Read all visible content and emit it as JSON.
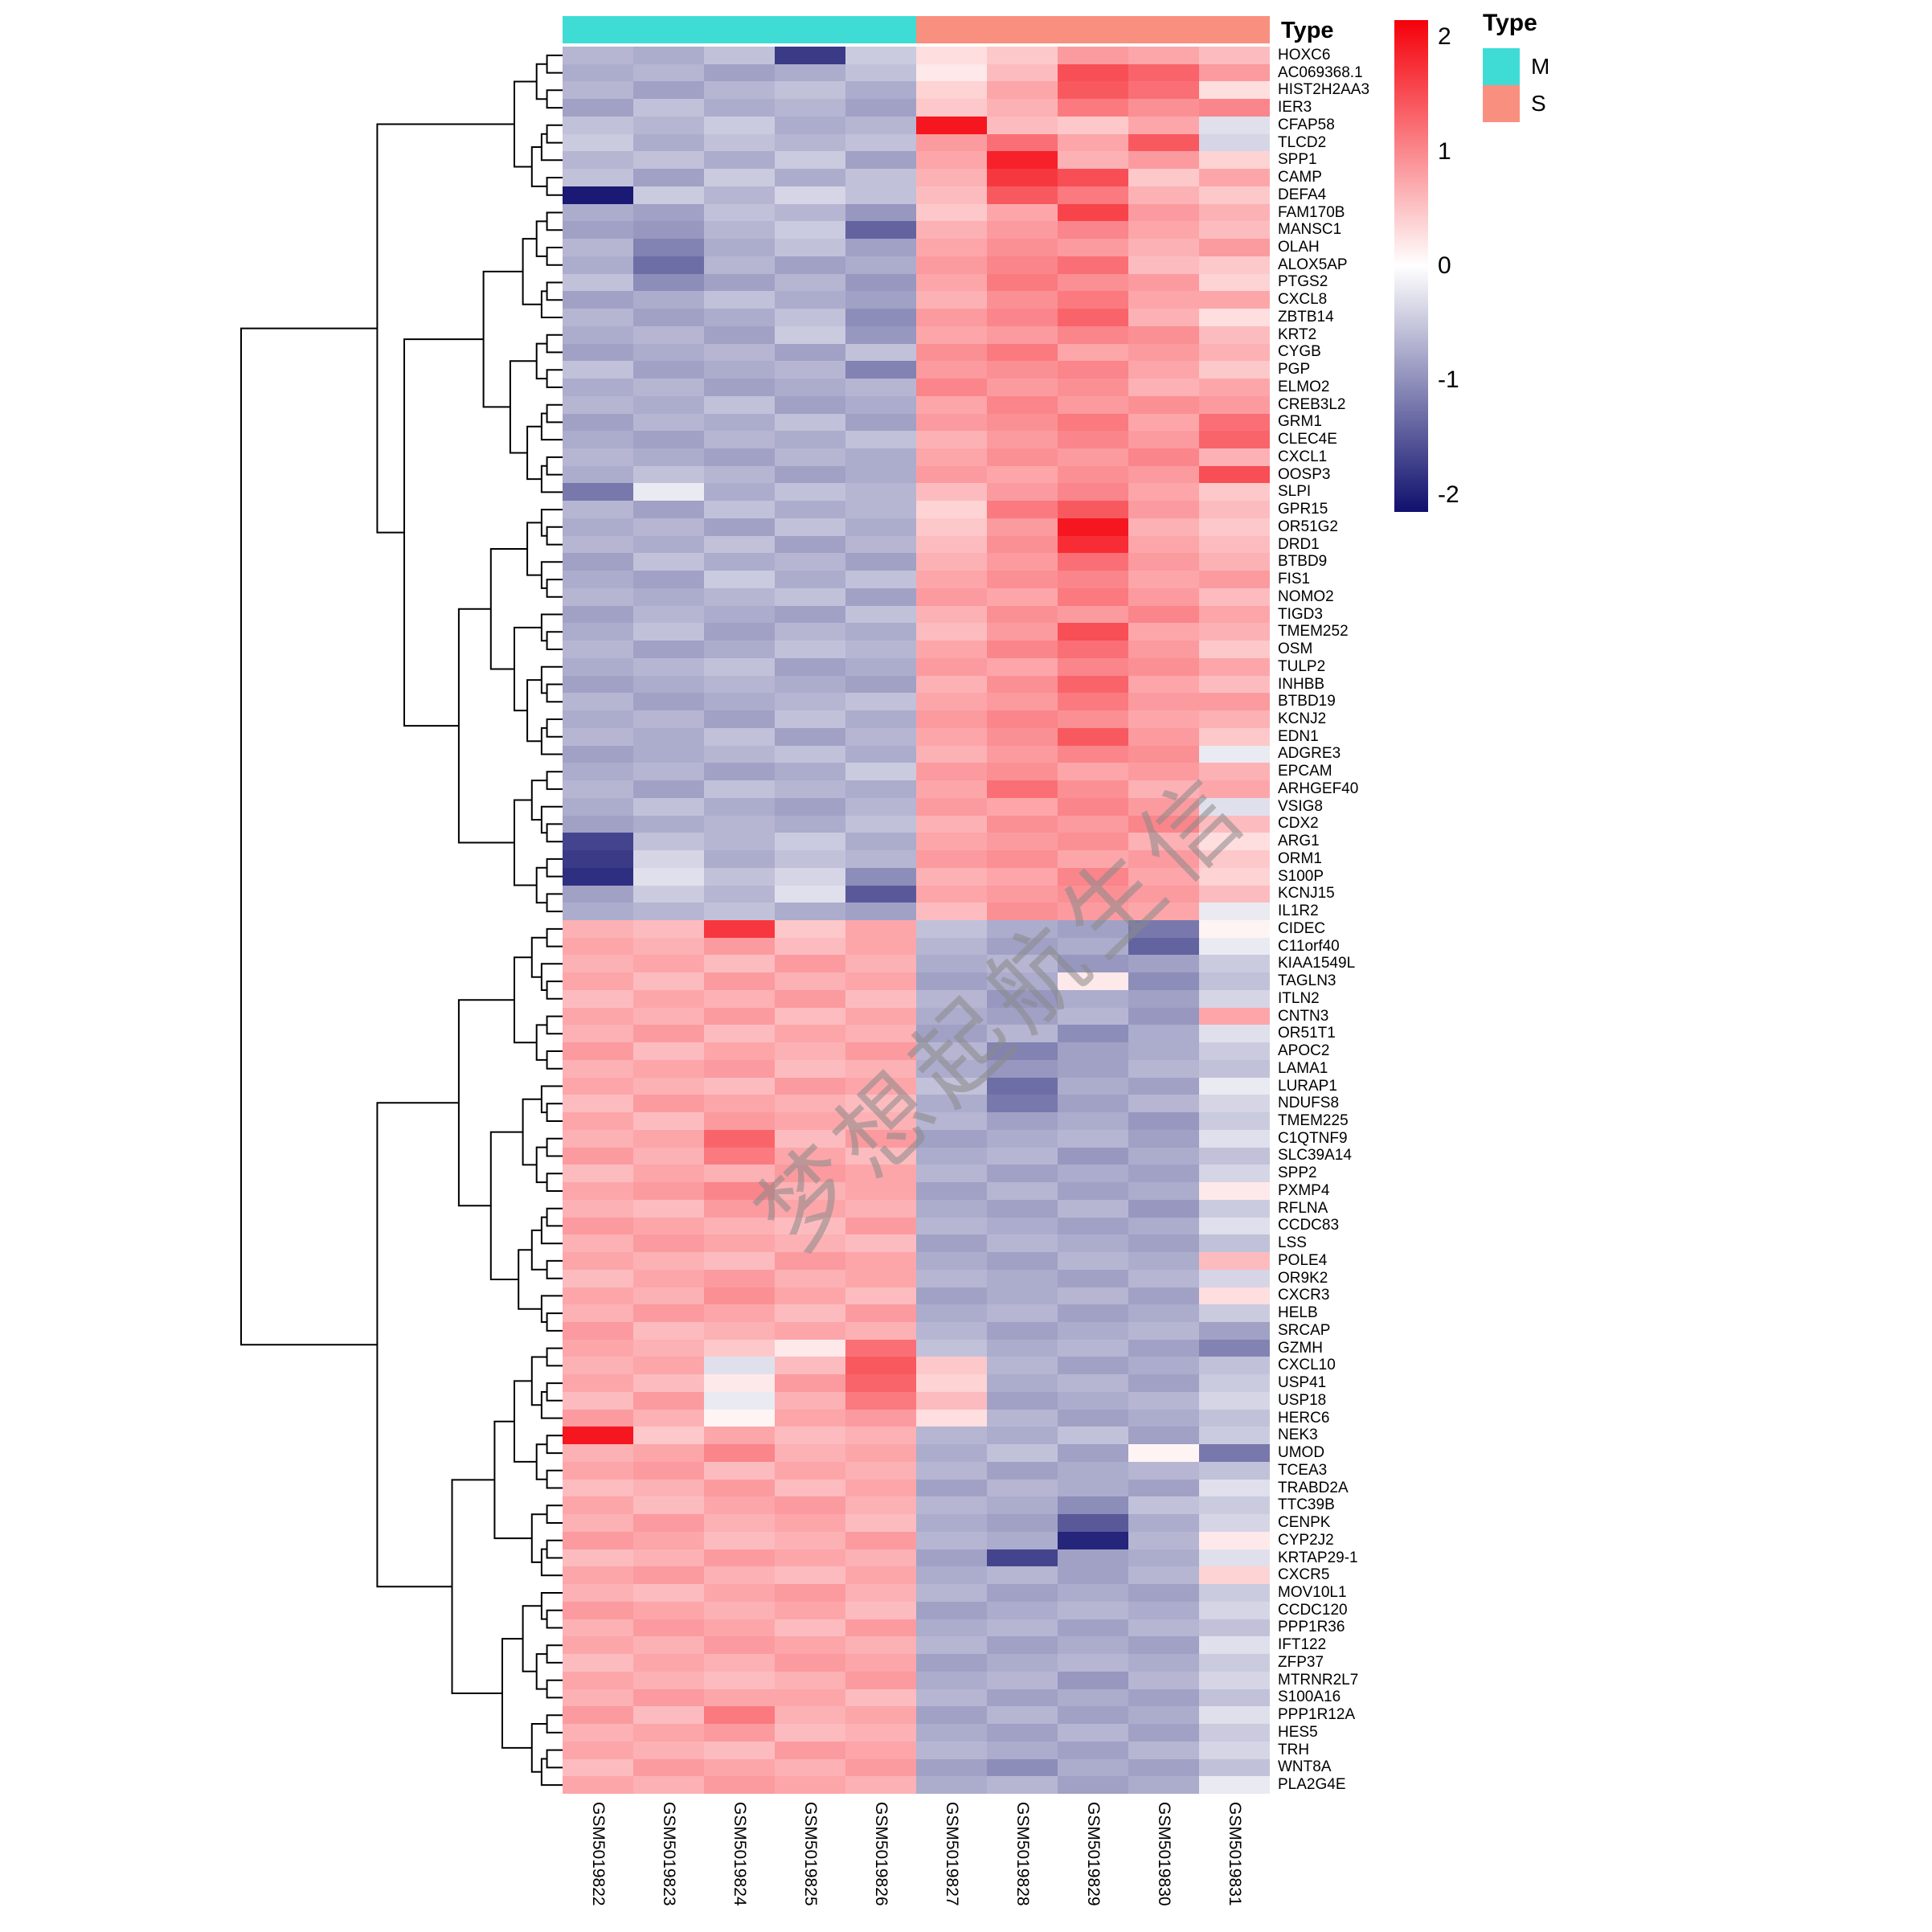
{
  "watermark": "梦想起航生信",
  "annotation": {
    "title": "Type",
    "groups": [
      {
        "label": "M",
        "color": "#3FDCD6",
        "span": 5
      },
      {
        "label": "S",
        "color": "#F9907F",
        "span": 5
      }
    ]
  },
  "legend": {
    "title": "Type"
  },
  "chart_data": {
    "type": "heatmap",
    "title": "",
    "xlabel": "",
    "ylabel": "",
    "legend_position": "right",
    "legend_ticks": [
      "2",
      "1",
      "0",
      "-1",
      "-2"
    ],
    "color_scale": {
      "min": -2,
      "max": 2,
      "low": "#10106E",
      "mid": "#FFFFFF",
      "high": "#F5000A"
    },
    "columns": [
      "GSM5019822",
      "GSM5019823",
      "GSM5019824",
      "GSM5019825",
      "GSM5019826",
      "GSM5019827",
      "GSM5019828",
      "GSM5019829",
      "GSM5019830",
      "GSM5019831"
    ],
    "column_annotation": [
      "M",
      "M",
      "M",
      "M",
      "M",
      "S",
      "S",
      "S",
      "S",
      "S"
    ],
    "rows": [
      "HOXC6",
      "AC069368.1",
      "HIST2H2AA3",
      "IER3",
      "CFAP58",
      "TLCD2",
      "SPP1",
      "CAMP",
      "DEFA4",
      "FAM170B",
      "MANSC1",
      "OLAH",
      "ALOX5AP",
      "PTGS2",
      "CXCL8",
      "ZBTB14",
      "KRT2",
      "CYGB",
      "PGP",
      "ELMO2",
      "CREB3L2",
      "GRM1",
      "CLEC4E",
      "CXCL1",
      "OOSP3",
      "SLPI",
      "GPR15",
      "OR51G2",
      "DRD1",
      "BTBD9",
      "FIS1",
      "NOMO2",
      "TIGD3",
      "TMEM252",
      "OSM",
      "TULP2",
      "INHBB",
      "BTBD19",
      "KCNJ2",
      "EDN1",
      "ADGRE3",
      "EPCAM",
      "ARHGEF40",
      "VSIG8",
      "CDX2",
      "ARG1",
      "ORM1",
      "S100P",
      "KCNJ15",
      "IL1R2",
      "CIDEC",
      "C11orf40",
      "KIAA1549L",
      "TAGLN3",
      "ITLN2",
      "CNTN3",
      "OR51T1",
      "APOC2",
      "LAMA1",
      "LURAP1",
      "NDUFS8",
      "TMEM225",
      "C1QTNF9",
      "SLC39A14",
      "SPP2",
      "PXMP4",
      "RFLNA",
      "CCDC83",
      "LSS",
      "POLE4",
      "OR9K2",
      "CXCR3",
      "HELB",
      "SRCAP",
      "GZMH",
      "CXCL10",
      "USP41",
      "USP18",
      "HERC6",
      "NEK3",
      "UMOD",
      "TCEA3",
      "TRABD2A",
      "TTC39B",
      "CENPK",
      "CYP2J2",
      "KRTAP29-1",
      "CXCR5",
      "MOV10L1",
      "CCDC120",
      "PPP1R36",
      "IFT122",
      "ZFP37",
      "MTRNR2L7",
      "S100A16",
      "PPP1R12A",
      "HES5",
      "TRH",
      "WNT8A",
      "PLA2G4E"
    ],
    "values": [
      [
        -0.7,
        -0.8,
        -0.6,
        -1.9,
        -0.5,
        0.3,
        0.5,
        0.9,
        0.8,
        0.6
      ],
      [
        -0.8,
        -0.7,
        -0.9,
        -0.8,
        -0.6,
        0.2,
        0.6,
        1.6,
        1.4,
        0.9
      ],
      [
        -0.7,
        -0.9,
        -0.7,
        -0.6,
        -0.8,
        0.4,
        0.8,
        1.5,
        1.3,
        0.3
      ],
      [
        -0.9,
        -0.6,
        -0.8,
        -0.7,
        -0.9,
        0.5,
        0.7,
        1.2,
        1.0,
        1.1
      ],
      [
        -0.6,
        -0.7,
        -0.5,
        -0.8,
        -0.7,
        2.1,
        0.6,
        0.5,
        0.8,
        -0.3
      ],
      [
        -0.5,
        -0.8,
        -0.6,
        -0.7,
        -0.6,
        0.9,
        1.3,
        0.8,
        1.5,
        -0.4
      ],
      [
        -0.7,
        -0.6,
        -0.8,
        -0.5,
        -0.9,
        0.8,
        2.0,
        0.7,
        0.9,
        0.4
      ],
      [
        -0.6,
        -0.9,
        -0.5,
        -0.8,
        -0.6,
        0.7,
        1.8,
        1.6,
        0.5,
        0.8
      ],
      [
        -2.2,
        -0.5,
        -0.7,
        -0.4,
        -0.6,
        0.6,
        1.5,
        1.2,
        0.7,
        0.5
      ],
      [
        -0.8,
        -0.9,
        -0.6,
        -0.7,
        -1.0,
        0.5,
        0.8,
        1.7,
        0.9,
        0.7
      ],
      [
        -0.9,
        -1.0,
        -0.7,
        -0.5,
        -1.5,
        0.7,
        0.9,
        1.1,
        0.8,
        0.6
      ],
      [
        -0.7,
        -1.2,
        -0.8,
        -0.6,
        -0.9,
        0.8,
        1.0,
        0.9,
        0.7,
        0.9
      ],
      [
        -0.8,
        -1.4,
        -0.7,
        -0.9,
        -0.8,
        0.9,
        1.1,
        1.3,
        0.6,
        0.5
      ],
      [
        -0.6,
        -1.1,
        -0.9,
        -0.7,
        -1.0,
        0.8,
        1.2,
        1.0,
        0.9,
        0.4
      ],
      [
        -0.9,
        -0.8,
        -0.6,
        -0.8,
        -0.9,
        0.7,
        1.0,
        1.2,
        0.8,
        0.8
      ],
      [
        -0.7,
        -0.9,
        -0.8,
        -0.6,
        -1.1,
        0.9,
        1.1,
        1.4,
        0.7,
        0.3
      ],
      [
        -0.8,
        -0.7,
        -0.9,
        -0.5,
        -1.0,
        0.8,
        0.9,
        1.1,
        1.0,
        0.6
      ],
      [
        -0.9,
        -0.8,
        -0.7,
        -0.9,
        -0.6,
        1.0,
        1.2,
        0.8,
        0.9,
        0.7
      ],
      [
        -0.6,
        -0.9,
        -0.8,
        -0.7,
        -1.2,
        0.9,
        1.0,
        1.1,
        0.8,
        0.5
      ],
      [
        -0.8,
        -0.7,
        -0.9,
        -0.8,
        -0.7,
        1.1,
        0.9,
        1.0,
        0.7,
        0.8
      ],
      [
        -0.7,
        -0.8,
        -0.6,
        -0.9,
        -0.8,
        0.8,
        1.1,
        0.9,
        1.0,
        0.9
      ],
      [
        -0.9,
        -0.7,
        -0.8,
        -0.6,
        -0.9,
        0.9,
        1.0,
        1.2,
        0.8,
        1.3
      ],
      [
        -0.8,
        -0.9,
        -0.7,
        -0.8,
        -0.6,
        0.7,
        0.9,
        1.1,
        0.9,
        1.4
      ],
      [
        -0.7,
        -0.8,
        -0.9,
        -0.7,
        -0.8,
        0.8,
        1.0,
        0.9,
        1.1,
        0.7
      ],
      [
        -0.8,
        -0.6,
        -0.7,
        -0.9,
        -0.8,
        0.9,
        0.8,
        1.0,
        0.9,
        1.6
      ],
      [
        -1.3,
        -0.2,
        -0.8,
        -0.6,
        -0.7,
        0.6,
        0.9,
        1.1,
        0.8,
        0.5
      ],
      [
        -0.7,
        -0.9,
        -0.6,
        -0.8,
        -0.7,
        0.4,
        1.2,
        1.5,
        0.9,
        0.6
      ],
      [
        -0.8,
        -0.7,
        -0.9,
        -0.6,
        -0.8,
        0.5,
        0.9,
        2.1,
        0.7,
        0.5
      ],
      [
        -0.7,
        -0.8,
        -0.6,
        -0.9,
        -0.7,
        0.6,
        1.0,
        1.9,
        0.8,
        0.6
      ],
      [
        -0.9,
        -0.6,
        -0.8,
        -0.7,
        -0.9,
        0.7,
        0.9,
        1.3,
        0.9,
        0.7
      ],
      [
        -0.8,
        -0.9,
        -0.5,
        -0.8,
        -0.6,
        0.8,
        1.0,
        1.1,
        0.8,
        0.9
      ],
      [
        -0.7,
        -0.8,
        -0.7,
        -0.6,
        -0.9,
        0.9,
        0.8,
        1.2,
        0.9,
        0.6
      ],
      [
        -0.9,
        -0.7,
        -0.8,
        -0.9,
        -0.6,
        0.7,
        1.0,
        0.9,
        1.1,
        0.8
      ],
      [
        -0.8,
        -0.6,
        -0.9,
        -0.7,
        -0.8,
        0.6,
        0.9,
        1.6,
        0.8,
        0.7
      ],
      [
        -0.7,
        -0.9,
        -0.8,
        -0.6,
        -0.7,
        0.8,
        1.1,
        1.3,
        0.9,
        0.5
      ],
      [
        -0.8,
        -0.7,
        -0.6,
        -0.9,
        -0.8,
        0.9,
        0.8,
        1.1,
        1.0,
        0.8
      ],
      [
        -0.9,
        -0.8,
        -0.7,
        -0.8,
        -0.9,
        0.7,
        1.0,
        1.4,
        0.8,
        0.6
      ],
      [
        -0.7,
        -0.9,
        -0.8,
        -0.7,
        -0.6,
        0.8,
        0.9,
        1.2,
        0.9,
        0.9
      ],
      [
        -0.8,
        -0.7,
        -0.9,
        -0.6,
        -0.8,
        0.9,
        1.1,
        1.0,
        0.8,
        0.7
      ],
      [
        -0.7,
        -0.8,
        -0.6,
        -0.9,
        -0.7,
        0.8,
        1.0,
        1.5,
        0.9,
        0.5
      ],
      [
        -0.9,
        -0.8,
        -0.7,
        -0.6,
        -0.8,
        0.7,
        0.9,
        1.1,
        1.0,
        -0.2
      ],
      [
        -0.8,
        -0.7,
        -0.9,
        -0.8,
        -0.5,
        0.9,
        1.0,
        0.8,
        0.9,
        0.7
      ],
      [
        -0.7,
        -0.9,
        -0.6,
        -0.7,
        -0.8,
        0.8,
        1.3,
        1.0,
        0.7,
        0.8
      ],
      [
        -0.8,
        -0.6,
        -0.8,
        -0.9,
        -0.7,
        0.9,
        0.8,
        1.1,
        0.9,
        -0.3
      ],
      [
        -0.9,
        -0.8,
        -0.7,
        -0.8,
        -0.6,
        0.7,
        1.0,
        0.9,
        1.1,
        0.6
      ],
      [
        -1.8,
        -0.6,
        -0.7,
        -0.5,
        -0.8,
        0.8,
        0.9,
        1.0,
        0.7,
        0.3
      ],
      [
        -1.9,
        -0.4,
        -0.8,
        -0.6,
        -0.7,
        0.9,
        1.0,
        0.8,
        0.9,
        0.5
      ],
      [
        -2.0,
        -0.3,
        -0.6,
        -0.4,
        -1.1,
        0.7,
        0.8,
        1.1,
        0.8,
        0.4
      ],
      [
        -0.9,
        -0.5,
        -0.7,
        -0.3,
        -1.6,
        0.8,
        0.9,
        1.0,
        0.9,
        0.6
      ],
      [
        -0.8,
        -0.7,
        -0.6,
        -0.8,
        -0.9,
        0.6,
        1.0,
        0.9,
        0.8,
        -0.2
      ],
      [
        0.7,
        0.6,
        1.8,
        0.5,
        0.8,
        -0.6,
        -0.8,
        -0.9,
        -1.3,
        0.1
      ],
      [
        0.8,
        0.7,
        0.9,
        0.6,
        0.8,
        -0.7,
        -0.9,
        -0.8,
        -1.5,
        -0.2
      ],
      [
        0.7,
        0.8,
        0.6,
        0.9,
        0.7,
        -0.8,
        -0.7,
        -1.0,
        -0.9,
        -0.5
      ],
      [
        0.8,
        0.6,
        0.9,
        0.7,
        0.8,
        -0.9,
        -0.8,
        0.2,
        -1.1,
        -0.6
      ],
      [
        0.6,
        0.8,
        0.7,
        0.9,
        0.6,
        -0.7,
        -1.0,
        -0.8,
        -0.9,
        -0.4
      ],
      [
        0.8,
        0.7,
        0.9,
        0.6,
        0.8,
        -0.8,
        -0.9,
        -0.7,
        -1.0,
        0.8
      ],
      [
        0.7,
        0.9,
        0.6,
        0.8,
        0.7,
        -0.9,
        -0.7,
        -1.1,
        -0.8,
        -0.3
      ],
      [
        0.9,
        0.6,
        0.8,
        0.7,
        0.9,
        -0.7,
        -1.2,
        -0.9,
        -0.8,
        -0.5
      ],
      [
        0.7,
        0.8,
        0.9,
        0.6,
        0.7,
        -0.8,
        -1.0,
        -0.9,
        -0.7,
        -0.6
      ],
      [
        0.8,
        0.7,
        0.6,
        0.9,
        0.8,
        -0.6,
        -1.4,
        -0.8,
        -0.9,
        -0.2
      ],
      [
        0.6,
        0.9,
        0.8,
        0.7,
        0.6,
        -0.8,
        -1.3,
        -0.9,
        -0.7,
        -0.4
      ],
      [
        0.8,
        0.6,
        0.9,
        0.8,
        0.7,
        -0.7,
        -0.9,
        -0.8,
        -1.0,
        -0.5
      ],
      [
        0.7,
        0.8,
        1.4,
        0.6,
        0.9,
        -0.9,
        -0.8,
        -0.7,
        -0.9,
        -0.3
      ],
      [
        0.9,
        0.7,
        1.2,
        0.8,
        0.6,
        -0.8,
        -0.7,
        -1.0,
        -0.8,
        -0.6
      ],
      [
        0.6,
        0.8,
        0.7,
        0.9,
        0.8,
        -0.7,
        -0.9,
        -0.8,
        -0.9,
        -0.4
      ],
      [
        0.8,
        0.9,
        1.1,
        0.7,
        0.8,
        -0.9,
        -0.7,
        -0.9,
        -0.8,
        0.2
      ],
      [
        0.7,
        0.6,
        0.9,
        0.8,
        0.7,
        -0.8,
        -0.9,
        -0.7,
        -1.0,
        -0.5
      ],
      [
        0.9,
        0.8,
        0.7,
        0.6,
        0.9,
        -0.7,
        -0.8,
        -0.9,
        -0.8,
        -0.3
      ],
      [
        0.7,
        0.9,
        0.8,
        0.7,
        0.6,
        -0.9,
        -0.7,
        -0.8,
        -0.9,
        -0.6
      ],
      [
        0.8,
        0.7,
        0.6,
        0.9,
        0.8,
        -0.8,
        -0.9,
        -0.7,
        -0.8,
        0.6
      ],
      [
        0.6,
        0.8,
        0.9,
        0.7,
        0.8,
        -0.7,
        -0.8,
        -0.9,
        -0.7,
        -0.4
      ],
      [
        0.8,
        0.7,
        1.0,
        0.8,
        0.6,
        -0.9,
        -0.8,
        -0.7,
        -0.9,
        0.3
      ],
      [
        0.7,
        0.9,
        0.8,
        0.6,
        0.9,
        -0.8,
        -0.7,
        -0.9,
        -0.8,
        -0.5
      ],
      [
        0.9,
        0.6,
        0.7,
        0.8,
        0.7,
        -0.7,
        -0.9,
        -0.8,
        -0.7,
        -0.9
      ],
      [
        0.8,
        0.7,
        0.5,
        0.2,
        1.3,
        -0.6,
        -0.8,
        -0.7,
        -0.9,
        -1.2
      ],
      [
        0.7,
        0.8,
        -0.3,
        0.6,
        1.5,
        0.5,
        -0.7,
        -0.9,
        -0.8,
        -0.6
      ],
      [
        0.8,
        0.6,
        0.2,
        0.9,
        1.4,
        0.4,
        -0.8,
        -0.7,
        -0.9,
        -0.5
      ],
      [
        0.6,
        0.9,
        -0.2,
        0.7,
        1.2,
        0.6,
        -0.9,
        -0.8,
        -0.7,
        -0.4
      ],
      [
        0.9,
        0.7,
        0.1,
        0.8,
        0.9,
        0.3,
        -0.7,
        -0.9,
        -0.8,
        -0.6
      ],
      [
        2.1,
        0.5,
        0.8,
        0.6,
        0.7,
        -0.7,
        -0.8,
        -0.6,
        -0.9,
        -0.5
      ],
      [
        0.7,
        0.8,
        1.1,
        0.7,
        0.8,
        -0.8,
        -0.6,
        -0.9,
        0.1,
        -1.3
      ],
      [
        0.8,
        0.9,
        0.6,
        0.8,
        0.7,
        -0.7,
        -0.9,
        -0.8,
        -0.7,
        -0.6
      ],
      [
        0.6,
        0.7,
        0.9,
        0.6,
        0.8,
        -0.9,
        -0.7,
        -0.8,
        -0.9,
        -0.3
      ],
      [
        0.8,
        0.6,
        0.8,
        0.9,
        0.7,
        -0.7,
        -0.8,
        -1.1,
        -0.6,
        -0.5
      ],
      [
        0.7,
        0.9,
        0.7,
        0.8,
        0.6,
        -0.8,
        -0.9,
        -1.6,
        -0.8,
        -0.4
      ],
      [
        0.9,
        0.8,
        0.6,
        0.7,
        0.9,
        -0.7,
        -0.8,
        -2.1,
        -0.7,
        0.2
      ],
      [
        0.6,
        0.7,
        0.9,
        0.8,
        0.7,
        -0.9,
        -1.8,
        -0.9,
        -0.8,
        -0.3
      ],
      [
        0.8,
        0.9,
        0.7,
        0.6,
        0.8,
        -0.8,
        -0.7,
        -0.9,
        -0.7,
        0.4
      ],
      [
        0.7,
        0.6,
        0.8,
        0.9,
        0.7,
        -0.7,
        -0.9,
        -0.8,
        -0.9,
        -0.5
      ],
      [
        0.9,
        0.8,
        0.7,
        0.8,
        0.6,
        -0.9,
        -0.8,
        -0.7,
        -0.8,
        -0.4
      ],
      [
        0.7,
        0.9,
        0.8,
        0.6,
        0.9,
        -0.8,
        -0.7,
        -0.9,
        -0.7,
        -0.6
      ],
      [
        0.8,
        0.7,
        0.9,
        0.8,
        0.7,
        -0.7,
        -0.9,
        -0.8,
        -0.9,
        -0.3
      ],
      [
        0.6,
        0.8,
        0.7,
        0.9,
        0.8,
        -0.9,
        -0.8,
        -0.7,
        -0.8,
        -0.5
      ],
      [
        0.8,
        0.7,
        0.6,
        0.7,
        0.9,
        -0.8,
        -0.7,
        -1.0,
        -0.7,
        -0.4
      ],
      [
        0.7,
        0.9,
        0.8,
        0.8,
        0.6,
        -0.7,
        -0.9,
        -0.8,
        -0.9,
        -0.6
      ],
      [
        0.9,
        0.6,
        1.2,
        0.7,
        0.8,
        -0.9,
        -0.7,
        -0.9,
        -0.8,
        -0.3
      ],
      [
        0.7,
        0.8,
        0.9,
        0.6,
        0.7,
        -0.8,
        -0.9,
        -0.7,
        -0.9,
        -0.5
      ],
      [
        0.8,
        0.7,
        0.6,
        0.9,
        0.8,
        -0.7,
        -0.8,
        -0.9,
        -0.7,
        -0.4
      ],
      [
        0.6,
        0.9,
        0.8,
        0.7,
        0.9,
        -0.9,
        -1.1,
        -0.8,
        -0.9,
        -0.6
      ],
      [
        0.8,
        0.7,
        0.9,
        0.8,
        0.7,
        -0.8,
        -0.7,
        -0.9,
        -0.8,
        -0.2
      ]
    ]
  }
}
